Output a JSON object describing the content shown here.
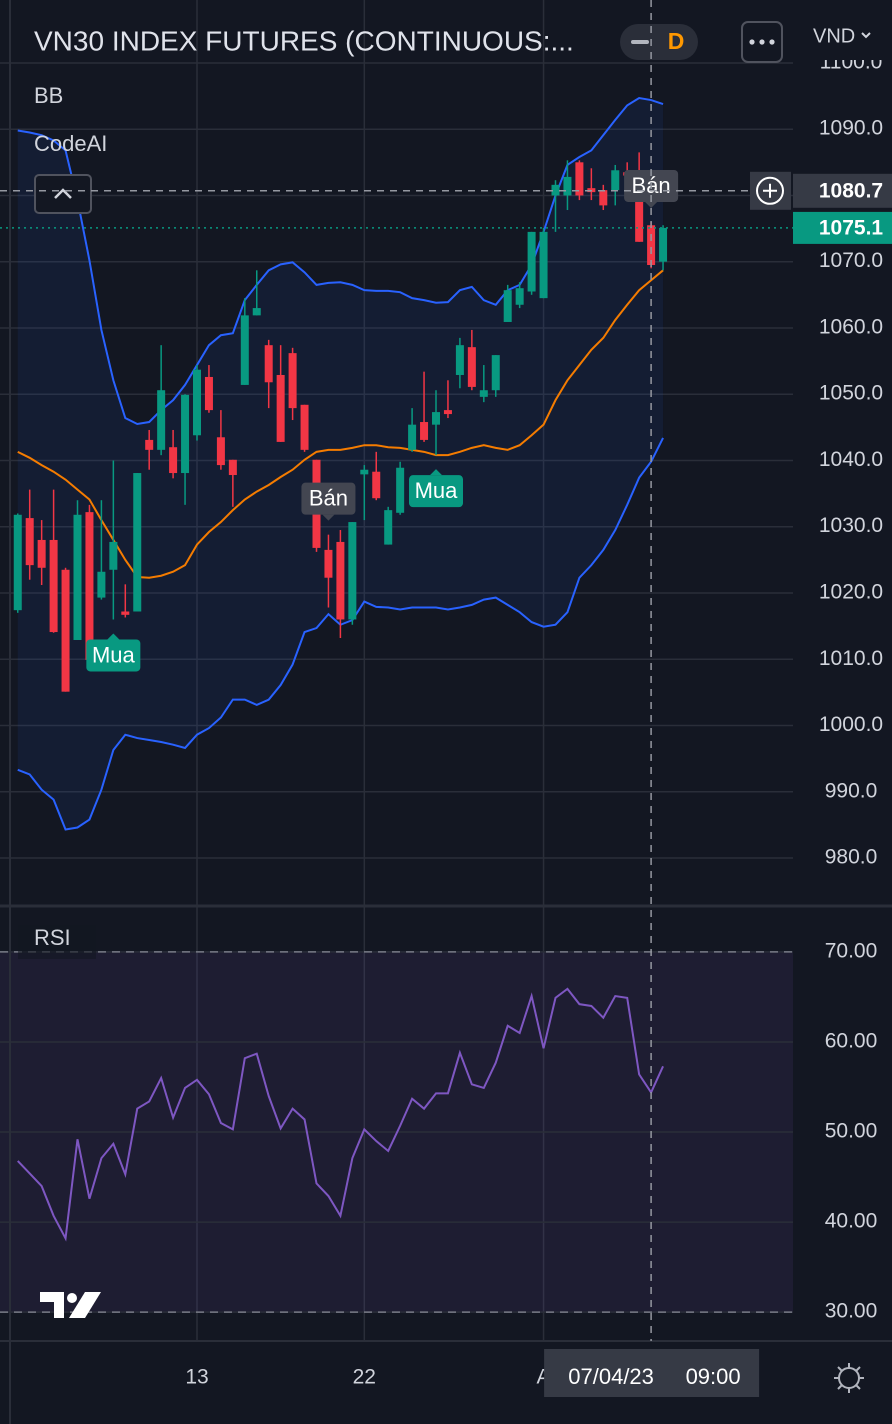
{
  "chart_data": [
    {
      "type": "candlestick",
      "title": "VN30 INDEX FUTURES (CONTINUOUS:...",
      "interval": "D",
      "currency": "VND",
      "indicators": [
        "BB",
        "CodeAI"
      ],
      "categories": [
        null,
        null,
        null,
        null,
        null,
        null,
        null,
        null,
        null,
        null,
        null,
        null,
        null,
        null,
        null,
        "13",
        null,
        null,
        null,
        null,
        null,
        null,
        null,
        null,
        null,
        null,
        null,
        null,
        null,
        "22",
        null,
        null,
        null,
        null,
        null,
        null,
        null,
        null,
        null,
        null,
        null,
        null,
        null,
        null,
        "A",
        null,
        null,
        null,
        null,
        null,
        null,
        null,
        null,
        null,
        null
      ],
      "open": [
        1017.4,
        1031.3,
        1028.0,
        1028.0,
        1023.5,
        1012.9,
        1032.2,
        1019.3,
        1023.5,
        1017.2,
        1017.2,
        1043.1,
        1041.6,
        1042.0,
        1038.1,
        1043.8,
        1052.6,
        1043.5,
        1040.1,
        1051.4,
        1061.9,
        1057.4,
        1052.9,
        1056.2,
        1048.4,
        1040.1,
        1026.5,
        1027.7,
        1016.0,
        1037.9,
        1038.3,
        1027.3,
        1032.1,
        1041.6,
        1045.8,
        1045.4,
        1047.6,
        1052.9,
        1057.1,
        1049.6,
        1050.6,
        1060.9,
        1063.5,
        1065.5,
        1064.5,
        1080.0,
        1080.0,
        1085.0,
        1081.1,
        1080.8,
        1080.8,
        1083.5,
        1080.0,
        1075.5,
        1070.0
      ],
      "high": [
        1032.0,
        1035.6,
        1031.0,
        1035.6,
        1023.8,
        1034.0,
        1033.3,
        1034.0,
        1040.0,
        1021.3,
        1038.1,
        1044.6,
        1057.4,
        1044.6,
        1050.0,
        1054.4,
        1054.4,
        1047.6,
        1040.1,
        1064.5,
        1068.7,
        1058.2,
        1057.4,
        1057.0,
        1048.4,
        1040.1,
        1028.8,
        1029.5,
        1030.7,
        1039.3,
        1041.3,
        1033.0,
        1039.8,
        1047.9,
        1053.4,
        1050.6,
        1052.1,
        1058.5,
        1059.7,
        1054.4,
        1055.9,
        1066.5,
        1066.9,
        1074.5,
        1075.1,
        1082.3,
        1085.3,
        1085.3,
        1084.1,
        1081.6,
        1084.6,
        1085.0,
        1086.5,
        1076.0,
        1075.5
      ],
      "low": [
        1017.0,
        1022.0,
        1021.2,
        1014.0,
        1005.1,
        1012.9,
        1009.9,
        1019.0,
        1016.0,
        1016.3,
        1017.2,
        1038.6,
        1040.8,
        1037.3,
        1033.3,
        1043.0,
        1047.2,
        1038.6,
        1033.0,
        1051.4,
        1061.9,
        1047.9,
        1042.8,
        1046.1,
        1041.3,
        1026.2,
        1017.8,
        1013.2,
        1015.2,
        1031.0,
        1034.0,
        1027.3,
        1031.8,
        1041.3,
        1042.8,
        1040.8,
        1046.4,
        1050.9,
        1050.6,
        1048.8,
        1049.6,
        1060.9,
        1063.0,
        1065.0,
        1064.5,
        1074.5,
        1077.8,
        1079.3,
        1079.3,
        1077.8,
        1078.5,
        1081.0,
        1073.0,
        1069.0,
        1068.7
      ],
      "close": [
        1031.8,
        1024.2,
        1023.8,
        1014.1,
        1005.1,
        1031.8,
        1009.9,
        1023.2,
        1027.7,
        1016.7,
        1038.1,
        1041.6,
        1050.6,
        1038.1,
        1049.9,
        1053.7,
        1047.6,
        1039.3,
        1037.8,
        1061.9,
        1063.0,
        1051.8,
        1042.8,
        1047.9,
        1041.6,
        1026.8,
        1022.3,
        1016.0,
        1030.7,
        1038.6,
        1034.3,
        1032.5,
        1038.9,
        1045.4,
        1043.1,
        1047.3,
        1047.0,
        1057.4,
        1051.1,
        1050.6,
        1055.9,
        1065.7,
        1066.0,
        1074.5,
        1074.5,
        1081.6,
        1082.8,
        1080.0,
        1080.5,
        1078.5,
        1083.8,
        1083.0,
        1073.0,
        1069.5,
        1075.1
      ],
      "up_color": "#089981",
      "down_color": "#f23645",
      "bands": [
        {
          "color": "#2962ff",
          "values": [
            1089.8,
            1089.5,
            1089.1,
            1088.3,
            1086.8,
            1079.3,
            1070.2,
            1059.7,
            1052.1,
            1046.4,
            1045.5,
            1045.8,
            1047.6,
            1049.1,
            1051.4,
            1054.4,
            1057.4,
            1058.9,
            1059.2,
            1064.2,
            1066.5,
            1068.7,
            1069.6,
            1069.9,
            1068.4,
            1066.5,
            1066.8,
            1066.9,
            1066.5,
            1065.7,
            1065.6,
            1065.6,
            1065.4,
            1064.5,
            1064.2,
            1063.8,
            1063.9,
            1065.7,
            1066.2,
            1064.2,
            1063.5,
            1065.7,
            1066.5,
            1069.5,
            1074.5,
            1080.0,
            1084.6,
            1085.8,
            1086.8,
            1089.1,
            1091.4,
            1093.6,
            1094.7,
            1094.4,
            1093.8
          ]
        },
        {
          "color": "#f57c00",
          "values": [
            1041.3,
            1040.4,
            1039.3,
            1038.3,
            1037.1,
            1035.6,
            1034.1,
            1031.0,
            1028.0,
            1025.0,
            1022.4,
            1022.3,
            1022.6,
            1023.2,
            1024.2,
            1027.3,
            1029.2,
            1030.7,
            1032.5,
            1034.1,
            1035.3,
            1036.3,
            1037.5,
            1038.6,
            1040.1,
            1041.3,
            1041.6,
            1041.6,
            1041.9,
            1042.3,
            1042.3,
            1042.0,
            1041.9,
            1041.6,
            1041.3,
            1040.8,
            1040.8,
            1041.3,
            1041.9,
            1042.3,
            1041.9,
            1041.6,
            1042.3,
            1043.8,
            1045.4,
            1049.1,
            1052.1,
            1054.4,
            1056.7,
            1058.5,
            1061.2,
            1063.5,
            1065.7,
            1067.2,
            1068.7
          ]
        },
        {
          "color": "#2962ff",
          "values": [
            993.3,
            992.6,
            990.3,
            988.8,
            984.3,
            984.6,
            985.8,
            990.3,
            996.3,
            998.6,
            998.1,
            997.8,
            997.5,
            997.1,
            996.6,
            998.6,
            999.6,
            1001.2,
            1003.9,
            1003.9,
            1003.1,
            1003.9,
            1006.1,
            1009.2,
            1014.1,
            1014.7,
            1016.8,
            1015.2,
            1015.9,
            1018.7,
            1017.9,
            1017.8,
            1017.5,
            1017.8,
            1017.8,
            1017.8,
            1017.5,
            1017.8,
            1018.2,
            1019.0,
            1019.3,
            1018.2,
            1017.1,
            1015.6,
            1014.9,
            1015.2,
            1017.1,
            1022.3,
            1024.2,
            1026.5,
            1029.5,
            1033.3,
            1037.4,
            1039.8,
            1043.4
          ]
        }
      ],
      "band_fill": "rgba(41,98,255,0.08)",
      "signals": [
        {
          "label": "Mua",
          "index": 8,
          "side": "buy",
          "color": "#089981"
        },
        {
          "label": "Bán",
          "index": 26,
          "side": "sell",
          "color": "#434651"
        },
        {
          "label": "Mua",
          "index": 35,
          "side": "buy",
          "color": "#089981"
        },
        {
          "label": "Bán",
          "index": 53,
          "side": "sell",
          "color": "#434651"
        }
      ],
      "ylim": [
        972.9,
        1109.5
      ],
      "yticks": [
        {
          "value": 980,
          "label": "980.0"
        },
        {
          "value": 990,
          "label": "990.0"
        },
        {
          "value": 1000,
          "label": "1000.0"
        },
        {
          "value": 1010,
          "label": "1010.0"
        },
        {
          "value": 1020,
          "label": "1020.0"
        },
        {
          "value": 1030,
          "label": "1030.0"
        },
        {
          "value": 1040,
          "label": "1040.0"
        },
        {
          "value": 1050,
          "label": "1050.0"
        },
        {
          "value": 1060,
          "label": "1060.0"
        },
        {
          "value": 1070,
          "label": "1070.0"
        },
        {
          "value": 1080,
          "label": "1080.0"
        },
        {
          "value": 1090,
          "label": "1090.0"
        },
        {
          "value": 1100,
          "label": "1100.0"
        }
      ],
      "last_price": 1075.1,
      "crosshair": {
        "index": 53,
        "value": 1080.7,
        "date": "07/04/23",
        "time": "09:00"
      },
      "grid": true
    },
    {
      "type": "line",
      "title": "RSI",
      "color": "#7e57c2",
      "values": [
        46.8,
        45.4,
        44.0,
        40.7,
        38.2,
        49.2,
        42.6,
        47.1,
        48.7,
        45.3,
        52.6,
        53.4,
        56.0,
        51.6,
        54.9,
        55.8,
        54.2,
        51.0,
        50.3,
        58.2,
        58.7,
        54.0,
        50.4,
        52.6,
        51.4,
        44.3,
        42.9,
        40.7,
        47.1,
        50.3,
        49.0,
        47.9,
        50.7,
        53.7,
        52.6,
        54.3,
        54.3,
        58.8,
        55.3,
        54.9,
        57.7,
        61.8,
        61.0,
        65.1,
        59.3,
        64.9,
        65.9,
        64.2,
        64.0,
        62.7,
        65.1,
        64.9,
        56.4,
        54.4,
        57.3
      ],
      "band": [
        30,
        70
      ],
      "band_fill": "rgba(126,87,194,0.10)",
      "ylim": [
        26.8,
        75.1
      ],
      "yticks": [
        {
          "value": 30,
          "label": "30.00"
        },
        {
          "value": 40,
          "label": "40.00"
        },
        {
          "value": 50,
          "label": "50.00"
        },
        {
          "value": 60,
          "label": "60.00"
        },
        {
          "value": 70,
          "label": "70.00"
        }
      ],
      "grid": true
    }
  ]
}
